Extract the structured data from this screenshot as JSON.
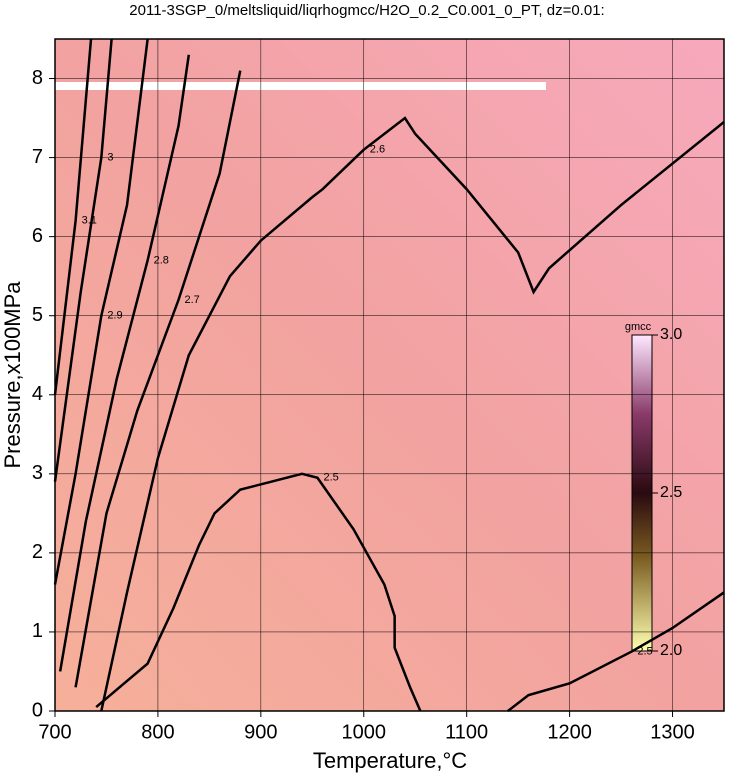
{
  "chart_data": {
    "type": "contour",
    "title": "2011-3SGP_0/meltsliquid/liqrhogmcc/H2O_0.2_C0.001_0_PT, dz=0.01:",
    "x_label": "Temperature,°C",
    "y_label": "Pressure,x100MPa",
    "xlim": [
      700,
      1350
    ],
    "ylim": [
      0,
      8.5
    ],
    "xticks": [
      700,
      800,
      900,
      1000,
      1100,
      1200,
      1300
    ],
    "yticks": [
      0,
      1,
      2,
      3,
      4,
      5,
      6,
      7,
      8
    ],
    "grid": true,
    "line_color": "#000000",
    "contours": [
      {
        "level": 2.5,
        "x": [
          740,
          790,
          815,
          840,
          855,
          880,
          940,
          955,
          990,
          1020,
          1030,
          1030,
          1045,
          1055
        ],
        "y": [
          0.05,
          0.6,
          1.3,
          2.1,
          2.5,
          2.8,
          3.0,
          2.95,
          2.3,
          1.6,
          1.2,
          0.8,
          0.3,
          0
        ]
      },
      {
        "level": 2.5,
        "x": [
          1140,
          1160,
          1200,
          1260,
          1300,
          1350
        ],
        "y": [
          0,
          0.2,
          0.35,
          0.75,
          1.05,
          1.5
        ]
      },
      {
        "level": 2.6,
        "x": [
          745,
          770,
          800,
          830,
          870,
          900,
          950,
          960,
          1000,
          1040,
          1050,
          1100,
          1150,
          1165,
          1180,
          1250,
          1350
        ],
        "y": [
          0,
          1.5,
          3.2,
          4.5,
          5.5,
          5.95,
          6.5,
          6.6,
          7.1,
          7.5,
          7.3,
          6.6,
          5.8,
          5.3,
          5.6,
          6.4,
          7.45
        ]
      },
      {
        "level": 2.7,
        "x": [
          720,
          750,
          780,
          820,
          860,
          880
        ],
        "y": [
          0.3,
          2.5,
          3.8,
          5.2,
          6.8,
          8.1
        ]
      },
      {
        "level": 2.8,
        "x": [
          705,
          730,
          760,
          790,
          820,
          830
        ],
        "y": [
          0.5,
          2.4,
          4.2,
          5.7,
          7.4,
          8.3
        ]
      },
      {
        "level": 2.9,
        "x": [
          700,
          720,
          745,
          770,
          790
        ],
        "y": [
          1.6,
          3.0,
          5.0,
          6.4,
          8.5
        ]
      },
      {
        "level": 3,
        "x": [
          700,
          725,
          745,
          755
        ],
        "y": [
          2.9,
          5.3,
          7.0,
          8.5
        ]
      },
      {
        "level": 3.1,
        "x": [
          700,
          720,
          735
        ],
        "y": [
          4.0,
          6.2,
          8.5
        ]
      }
    ],
    "colorbar": {
      "label": "gmcc",
      "lim": [
        2.0,
        3.0
      ],
      "ticks": [
        {
          "value": 2.0,
          "label": "2.0"
        },
        {
          "value": 2.5,
          "label": "2.5"
        },
        {
          "value": 3.0,
          "label": "3.0"
        }
      ]
    }
  }
}
